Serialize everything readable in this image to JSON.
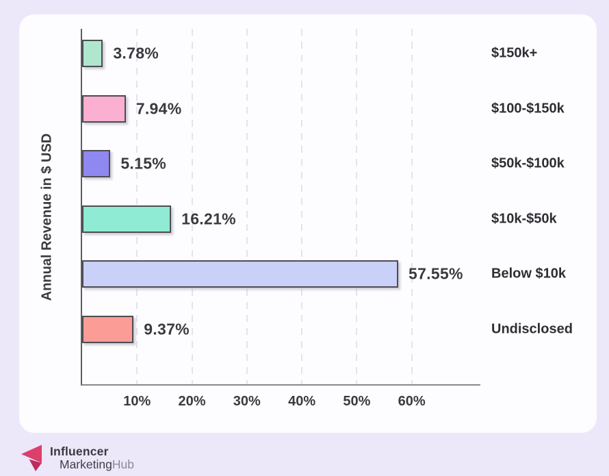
{
  "chart_data": {
    "type": "bar",
    "orientation": "horizontal",
    "title": "",
    "ylabel": "Annual Revenue in $ USD",
    "xlabel": "",
    "categories": [
      "$150k+",
      "$100-$150k",
      "$50k-$100k",
      "$10k-$50k",
      "Below $10k",
      "Undisclosed"
    ],
    "values": [
      3.78,
      7.94,
      5.15,
      16.21,
      57.55,
      9.37
    ],
    "value_labels": [
      "3.78%",
      "7.94%",
      "5.15%",
      "16.21%",
      "57.55%",
      "9.37%"
    ],
    "bar_colors": [
      "#AEE7CE",
      "#FBAFD1",
      "#8F88F0",
      "#8FEBD3",
      "#CAD1F8",
      "#FB9D96"
    ],
    "bar_border_color": "#4c4c52",
    "x_ticks": [
      10,
      20,
      30,
      40,
      50,
      60
    ],
    "x_tick_labels": [
      "10%",
      "20%",
      "30%",
      "40%",
      "50%",
      "60%"
    ],
    "xlim": [
      0,
      72.5
    ],
    "grid": "vertical-dashed",
    "legend": "none"
  },
  "branding": {
    "logo_line1": "Influencer",
    "logo_line2_dark": "Marketing",
    "logo_line2_light": "Hub",
    "icon": "left-arrow-fold-icon",
    "icon_color_main": "#DC3F6C",
    "icon_color_fold": "#BE2D5C"
  },
  "colors": {
    "page_background": "#EDE7FA",
    "card_background": "#FDFCFF",
    "axis": "#5c5c61",
    "gridline": "#e4e3e9",
    "text": "#3a3a3f"
  }
}
